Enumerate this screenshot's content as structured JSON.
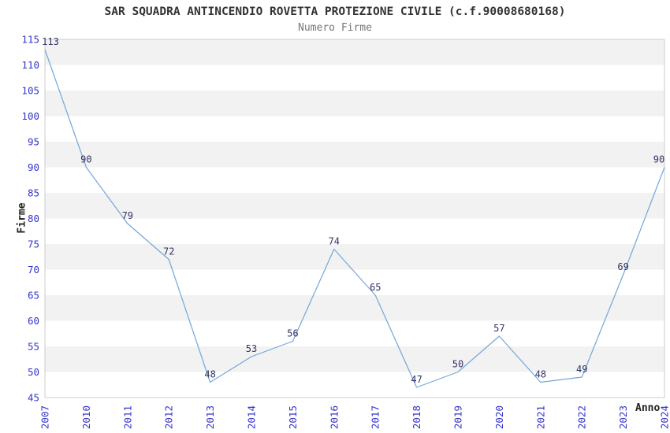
{
  "header": {
    "title": "SAR SQUADRA ANTINCENDIO ROVETTA PROTEZIONE CIVILE (c.f.90008680168)",
    "subtitle": "Numero Firme"
  },
  "chart_data": {
    "type": "line",
    "title": "SAR SQUADRA ANTINCENDIO ROVETTA PROTEZIONE CIVILE (c.f.90008680168)",
    "subtitle": "Numero Firme",
    "xlabel": "Anno",
    "ylabel": "Firme",
    "categories": [
      "2007",
      "2010",
      "2011",
      "2012",
      "2013",
      "2014",
      "2015",
      "2016",
      "2017",
      "2018",
      "2019",
      "2020",
      "2021",
      "2022",
      "2023",
      "2024"
    ],
    "values": [
      113,
      90,
      79,
      72,
      48,
      53,
      56,
      74,
      65,
      47,
      50,
      57,
      48,
      49,
      69,
      90
    ],
    "ylim": [
      45,
      115
    ],
    "ytick_step": 5,
    "grid": "horizontal-alternating-bands",
    "legend": "none",
    "data_labels_visible": true,
    "colors": {
      "line": "#76a5d8",
      "tick_label": "#3333cc",
      "data_label": "#333366",
      "band_fill": "#f2f2f2",
      "plot_border": "#cccccc",
      "title": "#333333",
      "subtitle": "#777777",
      "axis_title": "#222222",
      "background": "#ffffff"
    }
  }
}
